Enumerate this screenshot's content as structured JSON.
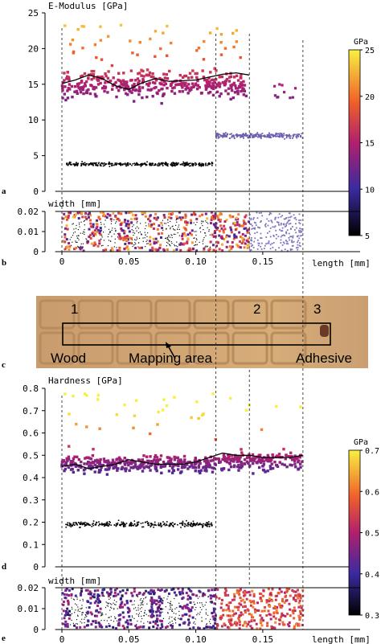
{
  "figure": {
    "panel_letters": [
      "a",
      "b",
      "c",
      "d",
      "e"
    ]
  },
  "chart_data": [
    {
      "panel": "a",
      "type": "scatter",
      "title": "",
      "ylabel": "E-Modulus [GPa]",
      "ylim": [
        0,
        25
      ],
      "yticks": [
        0,
        5,
        10,
        15,
        20,
        25
      ],
      "x_shared": "length [mm]",
      "xlim": [
        -0.005,
        0.185
      ],
      "colorbar": {
        "label": "GPa",
        "ticks": [
          5,
          10,
          15,
          20,
          25
        ]
      },
      "series": [
        {
          "name": "",
          "kind": "colored-points",
          "region": "wood",
          "x_range": [
            0.0,
            0.14
          ],
          "y_range": [
            12.0,
            23.5
          ]
        },
        {
          "name": "",
          "kind": "black-points",
          "region": "wood",
          "x_range": [
            0.0,
            0.115
          ],
          "y_center": 3.8
        },
        {
          "name": "",
          "kind": "purple-points",
          "region": "adhesive",
          "x_range": [
            0.115,
            0.18
          ],
          "y_center": 7.8
        },
        {
          "name": "",
          "kind": "moving-average",
          "x": [
            0.0,
            0.01,
            0.02,
            0.03,
            0.04,
            0.05,
            0.06,
            0.07,
            0.08,
            0.09,
            0.1,
            0.11,
            0.12,
            0.13,
            0.14
          ],
          "y": [
            15.1,
            15.6,
            16.3,
            15.8,
            14.8,
            14.3,
            15.2,
            15.8,
            15.4,
            15.5,
            15.6,
            16.0,
            16.4,
            16.6,
            16.3
          ]
        }
      ],
      "vlines_x": [
        0.0,
        0.115,
        0.14,
        0.18
      ]
    },
    {
      "panel": "b",
      "type": "scatter",
      "ylabel": "width [mm]",
      "ylim": [
        0,
        0.02
      ],
      "yticks": [
        0,
        0.01,
        0.02
      ],
      "xlabel": "length [mm]",
      "xticks": [
        0,
        0.05,
        0.1,
        0.15
      ],
      "xtick_labels": [
        "0",
        "0.05",
        "0.10",
        "0.15"
      ]
    },
    {
      "panel": "c",
      "type": "image",
      "labels": {
        "region_1": "1",
        "region_2": "2",
        "region_3": "3",
        "wood": "Wood",
        "mapping": "Mapping area",
        "adhesive": "Adhesive"
      }
    },
    {
      "panel": "d",
      "type": "scatter",
      "ylabel": "Hardness [GPa]",
      "ylim": [
        0,
        0.8
      ],
      "yticks": [
        0,
        0.1,
        0.2,
        0.3,
        0.4,
        0.5,
        0.6,
        0.7,
        0.8
      ],
      "colorbar": {
        "label": "GPa",
        "ticks": [
          0.3,
          0.4,
          0.5,
          0.6,
          0.7
        ]
      },
      "series": [
        {
          "name": "",
          "kind": "colored-points",
          "region": "all",
          "x_range": [
            0.0,
            0.18
          ],
          "y_range": [
            0.36,
            0.79
          ]
        },
        {
          "name": "",
          "kind": "black-points",
          "region": "wood",
          "x_range": [
            0.0,
            0.115
          ],
          "y_center": 0.19
        },
        {
          "name": "",
          "kind": "moving-average",
          "x": [
            0.0,
            0.01,
            0.02,
            0.03,
            0.04,
            0.05,
            0.06,
            0.07,
            0.08,
            0.09,
            0.1,
            0.11,
            0.12,
            0.13,
            0.14,
            0.15,
            0.16,
            0.17,
            0.18
          ],
          "y": [
            0.45,
            0.46,
            0.44,
            0.45,
            0.46,
            0.48,
            0.47,
            0.46,
            0.46,
            0.46,
            0.47,
            0.49,
            0.51,
            0.5,
            0.5,
            0.49,
            0.49,
            0.49,
            0.5
          ]
        }
      ],
      "vlines_x": [
        0.0,
        0.115,
        0.14,
        0.18
      ]
    },
    {
      "panel": "e",
      "type": "scatter",
      "ylabel": "width [mm]",
      "ylim": [
        0,
        0.02
      ],
      "yticks": [
        0,
        0.01,
        0.02
      ],
      "xlabel": "length [mm]",
      "xticks": [
        0,
        0.05,
        0.1,
        0.15
      ],
      "xtick_labels": [
        "0",
        "0.05",
        "0.10",
        "0.15"
      ]
    }
  ]
}
